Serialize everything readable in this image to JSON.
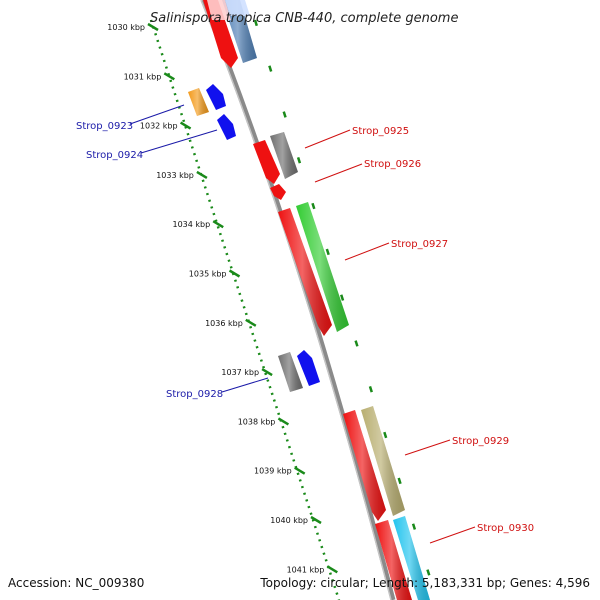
{
  "title": "Salinispora tropica CNB-440, complete genome",
  "footer": {
    "accession": "Accession: NC_009380",
    "topology": "Topology: circular; Length: 5,183,331 bp; Genes: 4,596"
  },
  "colors": {
    "backbone": "#808080",
    "ruler": "#1a8a1a",
    "cds": "#ee1111",
    "forward_label": "#1a1aa8",
    "reverse_label": "#d01010"
  },
  "ruler_ticks": [
    "1030 kbp",
    "1031 kbp",
    "1032 kbp",
    "1033 kbp",
    "1034 kbp",
    "1035 kbp",
    "1036 kbp",
    "1037 kbp",
    "1038 kbp",
    "1039 kbp",
    "1040 kbp",
    "1041 kbp"
  ],
  "genes": [
    {
      "label": "Strop_0923",
      "strand": "forward",
      "color": "#f39a1a"
    },
    {
      "label": "Strop_0924",
      "strand": "forward",
      "color": "#1111ee"
    },
    {
      "label": "Strop_0925",
      "strand": "reverse",
      "color": "#777777"
    },
    {
      "label": "Strop_0926",
      "strand": "reverse",
      "color": "#ee1111"
    },
    {
      "label": "Strop_0927",
      "strand": "reverse",
      "color": "#33cc33"
    },
    {
      "label": "Strop_0928",
      "strand": "forward",
      "color": "#777777"
    },
    {
      "label": "Strop_0929",
      "strand": "reverse",
      "color": "#b8ae70"
    },
    {
      "label": "Strop_0930",
      "strand": "reverse",
      "color": "#22c4ee"
    }
  ]
}
